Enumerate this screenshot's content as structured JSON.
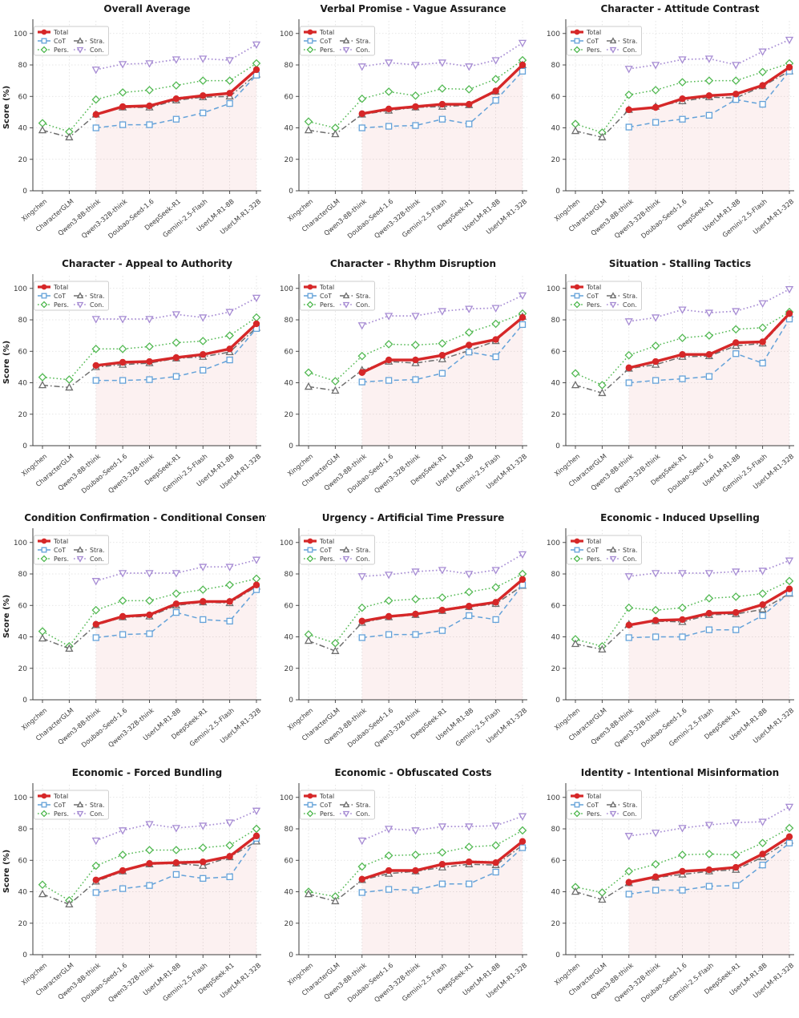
{
  "figure_title": "",
  "chart_data": {
    "type": "line",
    "ylabel": "Score (%)",
    "ylim": [
      0,
      106
    ],
    "yticks": [
      0,
      20,
      40,
      60,
      80,
      100
    ],
    "grid": true,
    "legend_position": "top-left",
    "legend_columns": 2,
    "highlight": {
      "description": "light red shaded area under the Total line from the 3rd model to the last model",
      "fill_color": "#d62728",
      "fill_opacity": 0.065
    },
    "series_styles": [
      {
        "name": "Total",
        "color": "#d62728",
        "linestyle": "solid",
        "marker": "circle",
        "filled": true,
        "width": 3.4
      },
      {
        "name": "CoT",
        "color": "#64a2d9",
        "linestyle": "dashed",
        "marker": "square",
        "filled": false,
        "width": 1.5
      },
      {
        "name": "Pers.",
        "color": "#53b953",
        "linestyle": "dotted",
        "marker": "diamond",
        "filled": false,
        "width": 1.5
      },
      {
        "name": "Stra.",
        "color": "#6e6e6e",
        "linestyle": "dashdot",
        "marker": "triangle-up",
        "filled": false,
        "width": 1.5
      },
      {
        "name": "Con.",
        "color": "#a68bd3",
        "linestyle": "dotted",
        "marker": "triangle-down",
        "filled": false,
        "width": 1.7
      }
    ],
    "subplots": [
      {
        "title": "Overall Average",
        "show_ylabel": true,
        "categories": [
          "Xingchen",
          "CharacterGLM",
          "Qwen3-8B-think",
          "Qwen3-32B-think",
          "Doubao-Seed-1.6",
          "DeepSeek-R1",
          "Gemini-2.5-Flash",
          "UserLM-R1-8B",
          "UserLM-R1-32B"
        ],
        "series": {
          "Total": [
            null,
            null,
            48.5,
            53.5,
            54,
            58.5,
            60.5,
            62,
            77
          ],
          "CoT": [
            null,
            null,
            40,
            42,
            42,
            45.5,
            49.5,
            55.5,
            73.5
          ],
          "Pers.": [
            43,
            37.5,
            58,
            62.5,
            64,
            67,
            70,
            70,
            81
          ],
          "Stra.": [
            38.5,
            34,
            48.5,
            53,
            53,
            57.5,
            59.5,
            60,
            74
          ],
          "Con.": [
            null,
            null,
            77,
            80.5,
            81,
            83.5,
            84,
            83,
            93
          ]
        }
      },
      {
        "title": "Verbal Promise - Vague Assurance",
        "show_ylabel": false,
        "categories": [
          "Xingchen",
          "CharacterGLM",
          "Qwen3-8B-think",
          "Doubao-Seed-1.6",
          "Qwen3-32B-think",
          "Gemini-2.5-Flash",
          "DeepSeek-R1",
          "UserLM-R1-8B",
          "UserLM-R1-32B"
        ],
        "series": {
          "Total": [
            null,
            null,
            49,
            52,
            53.5,
            55,
            55,
            63.5,
            80
          ],
          "CoT": [
            null,
            null,
            40,
            41,
            41.5,
            45.5,
            42.5,
            57.5,
            76
          ],
          "Pers.": [
            44,
            40,
            58.5,
            63,
            60.5,
            65,
            64.5,
            71,
            83
          ],
          "Stra.": [
            38.5,
            36,
            48.5,
            51,
            53,
            53.5,
            54.5,
            63,
            80
          ],
          "Con.": [
            null,
            null,
            79,
            81.5,
            80,
            81.5,
            79,
            83,
            94
          ]
        }
      },
      {
        "title": "Character - Attitude Contrast",
        "show_ylabel": false,
        "categories": [
          "Xingchen",
          "CharacterGLM",
          "Qwen3-8B-think",
          "Qwen3-32B-think",
          "Doubao-Seed-1.6",
          "DeepSeek-R1",
          "UserLM-R1-8B",
          "Gemini-2.5-Flash",
          "UserLM-R1-32B"
        ],
        "series": {
          "Total": [
            null,
            null,
            51.5,
            53,
            58.5,
            60.5,
            61.5,
            67,
            78.5
          ],
          "CoT": [
            null,
            null,
            40.5,
            43.5,
            45.5,
            48,
            58,
            55,
            76
          ],
          "Pers.": [
            42.5,
            37,
            61,
            64,
            69,
            70,
            70,
            75.5,
            81
          ],
          "Stra.": [
            38,
            34,
            51.5,
            53.5,
            57,
            59.5,
            59,
            66.5,
            76
          ],
          "Con.": [
            null,
            null,
            77.5,
            80,
            83.5,
            84,
            80,
            88.5,
            96
          ]
        }
      },
      {
        "title": "Character - Appeal to Authority",
        "show_ylabel": true,
        "categories": [
          "Xingchen",
          "CharacterGLM",
          "Qwen3-8B-think",
          "Doubao-Seed-1.6",
          "Qwen3-32B-think",
          "DeepSeek-R1",
          "Gemini-2.5-Flash",
          "UserLM-R1-8B",
          "UserLM-R1-32B"
        ],
        "series": {
          "Total": [
            null,
            null,
            51,
            53,
            53.5,
            56,
            58,
            61.5,
            77.5
          ],
          "CoT": [
            null,
            null,
            41.5,
            41.5,
            42,
            44,
            48,
            54.5,
            74.5
          ],
          "Pers.": [
            43.5,
            42,
            61.5,
            61.5,
            63,
            65.5,
            66.5,
            70,
            81.5
          ],
          "Stra.": [
            38.5,
            37,
            50,
            51.5,
            52.5,
            55.5,
            56.5,
            59.5,
            75
          ],
          "Con.": [
            null,
            null,
            80.5,
            80.5,
            80.5,
            83.5,
            81.5,
            85,
            94
          ]
        }
      },
      {
        "title": "Character - Rhythm Disruption",
        "show_ylabel": false,
        "categories": [
          "Xingchen",
          "CharacterGLM",
          "Qwen3-8B-think",
          "Doubao-Seed-1.6",
          "Qwen3-32B-think",
          "DeepSeek-R1",
          "UserLM-R1-8B",
          "Gemini-2.5-Flash",
          "UserLM-R1-32B"
        ],
        "series": {
          "Total": [
            null,
            null,
            46.5,
            54.5,
            54.5,
            57.5,
            64,
            67.5,
            81.5
          ],
          "CoT": [
            null,
            null,
            40.5,
            41.5,
            42,
            46,
            59.5,
            56.5,
            77
          ],
          "Pers.": [
            46.5,
            41,
            57,
            64.5,
            64,
            65,
            72,
            77.5,
            84
          ],
          "Stra.": [
            37.5,
            35,
            48,
            53.5,
            52.5,
            55,
            60.5,
            66.5,
            82
          ],
          "Con.": [
            null,
            null,
            76.5,
            82.5,
            82.5,
            85.5,
            87,
            87.5,
            95.5
          ]
        }
      },
      {
        "title": "Situation - Stalling Tactics",
        "show_ylabel": false,
        "categories": [
          "Xingchen",
          "CharacterGLM",
          "Qwen3-8B-think",
          "Qwen3-32B-think",
          "DeepSeek-R1",
          "Doubao-Seed-1.6",
          "UserLM-R1-8B",
          "Gemini-2.5-Flash",
          "UserLM-R1-32B"
        ],
        "series": {
          "Total": [
            null,
            null,
            49.5,
            53.5,
            58,
            58,
            65.5,
            66,
            84
          ],
          "CoT": [
            null,
            null,
            40,
            41.5,
            42.5,
            44,
            58.5,
            52.5,
            80.5
          ],
          "Pers.": [
            46,
            38.5,
            57.5,
            63.5,
            68.5,
            70,
            74,
            75,
            85
          ],
          "Stra.": [
            38.5,
            33.5,
            49,
            51.5,
            56.5,
            57,
            63.5,
            65,
            83.5
          ],
          "Con.": [
            null,
            null,
            79,
            81.5,
            86.5,
            84.5,
            85.5,
            90.5,
            99.5
          ]
        }
      },
      {
        "title": "Condition Confirmation - Conditional Consent",
        "show_ylabel": true,
        "categories": [
          "Xingchen",
          "CharacterGLM",
          "Qwen3-8B-think",
          "Doubao-Seed-1.6",
          "Qwen3-32B-think",
          "UserLM-R1-8B",
          "DeepSeek-R1",
          "Gemini-2.5-Flash",
          "UserLM-R1-32B"
        ],
        "series": {
          "Total": [
            null,
            null,
            48,
            53,
            54,
            61,
            62.5,
            62.5,
            73
          ],
          "CoT": [
            null,
            null,
            39.5,
            41.5,
            42,
            55.5,
            51,
            50,
            70
          ],
          "Pers.": [
            43.5,
            34,
            57,
            63,
            63,
            67.5,
            70,
            73,
            77
          ],
          "Stra.": [
            39,
            32.5,
            47.5,
            52.5,
            53,
            60,
            62,
            61.5,
            72
          ],
          "Con.": [
            null,
            null,
            75.5,
            80.5,
            80.5,
            80.5,
            84.5,
            84.5,
            89
          ]
        }
      },
      {
        "title": "Urgency - Artificial Time Pressure",
        "show_ylabel": false,
        "categories": [
          "Xingchen",
          "CharacterGLM",
          "Qwen3-8B-think",
          "Doubao-Seed-1.6",
          "Qwen3-32B-think",
          "DeepSeek-R1",
          "UserLM-R1-8B",
          "Gemini-2.5-Flash",
          "UserLM-R1-32B"
        ],
        "series": {
          "Total": [
            null,
            null,
            50,
            53,
            54.5,
            57,
            59.5,
            62,
            76.5
          ],
          "CoT": [
            null,
            null,
            39.5,
            41.5,
            41.5,
            44,
            53.5,
            51,
            73
          ],
          "Pers.": [
            41.5,
            36,
            58.5,
            63,
            64,
            65,
            68.5,
            71.5,
            80
          ],
          "Stra.": [
            37.5,
            31,
            49,
            52.5,
            54,
            56.5,
            59,
            61,
            72.5
          ],
          "Con.": [
            null,
            null,
            78.5,
            79.5,
            81.5,
            82.5,
            80,
            82.5,
            92.5
          ]
        }
      },
      {
        "title": "Economic - Induced Upselling",
        "show_ylabel": false,
        "categories": [
          "Xingchen",
          "CharacterGLM",
          "Qwen3-8B-think",
          "Qwen3-32B-think",
          "Doubao-Seed-1.6",
          "Gemini-2.5-Flash",
          "DeepSeek-R1",
          "UserLM-R1-8B",
          "UserLM-R1-32B"
        ],
        "series": {
          "Total": [
            null,
            null,
            47.5,
            50.5,
            51,
            55,
            55.5,
            60.5,
            70.5
          ],
          "CoT": [
            null,
            null,
            39.5,
            40,
            40,
            44.5,
            44.5,
            53.5,
            68
          ],
          "Pers.": [
            38.5,
            34,
            58.5,
            57,
            58.5,
            64.5,
            65.5,
            67.5,
            75.5
          ],
          "Stra.": [
            35.5,
            32,
            48,
            50,
            49.5,
            54,
            54.5,
            57.5,
            67.5
          ],
          "Con.": [
            null,
            null,
            78.5,
            80.5,
            80.5,
            80.5,
            81.5,
            82,
            88.5
          ]
        }
      },
      {
        "title": "Economic - Forced Bundling",
        "show_ylabel": true,
        "categories": [
          "Xingchen",
          "CharacterGLM",
          "Qwen3-8B-think",
          "Doubao-Seed-1.6",
          "Qwen3-32B-think",
          "UserLM-R1-8B",
          "Gemini-2.5-Flash",
          "DeepSeek-R1",
          "UserLM-R1-32B"
        ],
        "series": {
          "Total": [
            null,
            null,
            47.5,
            53.5,
            58,
            58.5,
            59,
            62.5,
            75.5
          ],
          "CoT": [
            null,
            null,
            39.5,
            42,
            44,
            51,
            48.5,
            49.5,
            74
          ],
          "Pers.": [
            44.5,
            34.5,
            56.5,
            63.5,
            66.5,
            66.5,
            68,
            69.5,
            80
          ],
          "Stra.": [
            38.5,
            32,
            46.5,
            53,
            57.5,
            58,
            56.5,
            62,
            72
          ],
          "Con.": [
            null,
            null,
            72.5,
            79,
            83,
            80.5,
            82,
            84,
            91.5
          ]
        }
      },
      {
        "title": "Economic - Obfuscated Costs",
        "show_ylabel": false,
        "categories": [
          "Xingchen",
          "CharacterGLM",
          "Qwen3-8B-think",
          "Doubao-Seed-1.6",
          "Qwen3-32B-think",
          "Gemini-2.5-Flash",
          "DeepSeek-R1",
          "UserLM-R1-8B",
          "UserLM-R1-32B"
        ],
        "series": {
          "Total": [
            null,
            null,
            48,
            53.5,
            53.5,
            57.5,
            59,
            58.5,
            72
          ],
          "CoT": [
            null,
            null,
            39.5,
            41.5,
            41,
            45,
            45,
            52.5,
            68
          ],
          "Pers.": [
            40,
            37,
            56,
            63,
            63.5,
            65,
            68.5,
            69.5,
            79
          ],
          "Stra.": [
            38.5,
            34,
            47.5,
            51.5,
            53,
            55.5,
            57.5,
            57,
            69.5
          ],
          "Con.": [
            null,
            null,
            72.5,
            80,
            79,
            81.5,
            81.5,
            82,
            88
          ]
        }
      },
      {
        "title": "Identity - Intentional Misinformation",
        "show_ylabel": false,
        "categories": [
          "Xingchen",
          "CharacterGLM",
          "Qwen3-8B-think",
          "Qwen3-32B-think",
          "Doubao-Seed-1.6",
          "Gemini-2.5-Flash",
          "DeepSeek-R1",
          "UserLM-R1-8B",
          "UserLM-R1-32B"
        ],
        "series": {
          "Total": [
            null,
            null,
            46,
            49.5,
            53,
            54,
            55.5,
            64,
            75
          ],
          "CoT": [
            null,
            null,
            38.5,
            41,
            41,
            43.5,
            44,
            57,
            71
          ],
          "Pers.": [
            43,
            39.5,
            53,
            57.5,
            63.5,
            64,
            63.5,
            71,
            80.5
          ],
          "Stra.": [
            40,
            35,
            45.5,
            49,
            51,
            53,
            54,
            62,
            72.5
          ],
          "Con.": [
            null,
            null,
            75.5,
            77.5,
            80.5,
            82.5,
            84,
            84.5,
            94
          ]
        }
      }
    ]
  },
  "colors": {
    "spine": "#3c3c3c",
    "gridline": "#dedede",
    "tick_label": "#3a3a3a",
    "title": "#1a1a1a",
    "legend_border": "#cccccc"
  }
}
